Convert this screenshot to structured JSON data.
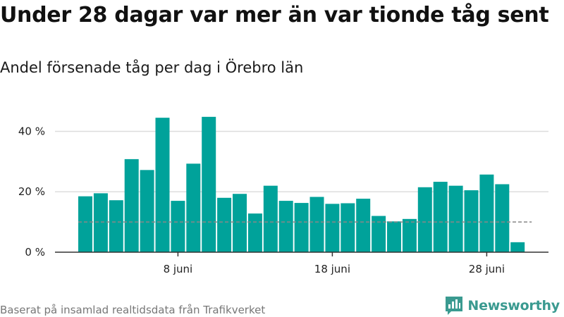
{
  "title": "Under 28 dagar var mer än var tionde tåg sent",
  "subtitle": "Andel försenade tåg per dag i Örebro län",
  "footer": "Baserat på insamlad realtidsdata från Trafikverket",
  "brand": {
    "name": "Newsworthy",
    "icon": "newsworthy-logo-icon",
    "color": "#3a9a90"
  },
  "chart_data": {
    "type": "bar",
    "title": "Under 28 dagar var mer än var tionde tåg sent",
    "subtitle": "Andel försenade tåg per dag i Örebro län",
    "x_start": "2 juni",
    "x_ticks": [
      {
        "day": 8,
        "label": "8 juni"
      },
      {
        "day": 18,
        "label": "18 juni"
      },
      {
        "day": 28,
        "label": "28 juni"
      }
    ],
    "y_ticks": [
      {
        "value": 0,
        "label": "0 %"
      },
      {
        "value": 20,
        "label": "20 %"
      },
      {
        "value": 40,
        "label": "40 %"
      }
    ],
    "ylim": [
      0,
      45
    ],
    "reference_line": {
      "value": 10,
      "style": "dashed",
      "color": "#888888"
    },
    "bar_color": "#00a29a",
    "grid": true,
    "days": [
      2,
      3,
      4,
      5,
      6,
      7,
      8,
      9,
      10,
      11,
      12,
      13,
      14,
      15,
      16,
      17,
      18,
      19,
      20,
      21,
      22,
      23,
      24,
      25,
      26,
      27,
      28,
      29,
      30
    ],
    "values": [
      18.5,
      19.5,
      17.2,
      30.8,
      27.2,
      44.5,
      17.0,
      29.3,
      44.8,
      18.0,
      19.3,
      12.8,
      22.0,
      17.0,
      16.3,
      18.3,
      16.0,
      16.2,
      17.7,
      12.0,
      10.2,
      11.0,
      21.5,
      23.3,
      22.0,
      20.5,
      25.7,
      22.5,
      3.3
    ]
  }
}
